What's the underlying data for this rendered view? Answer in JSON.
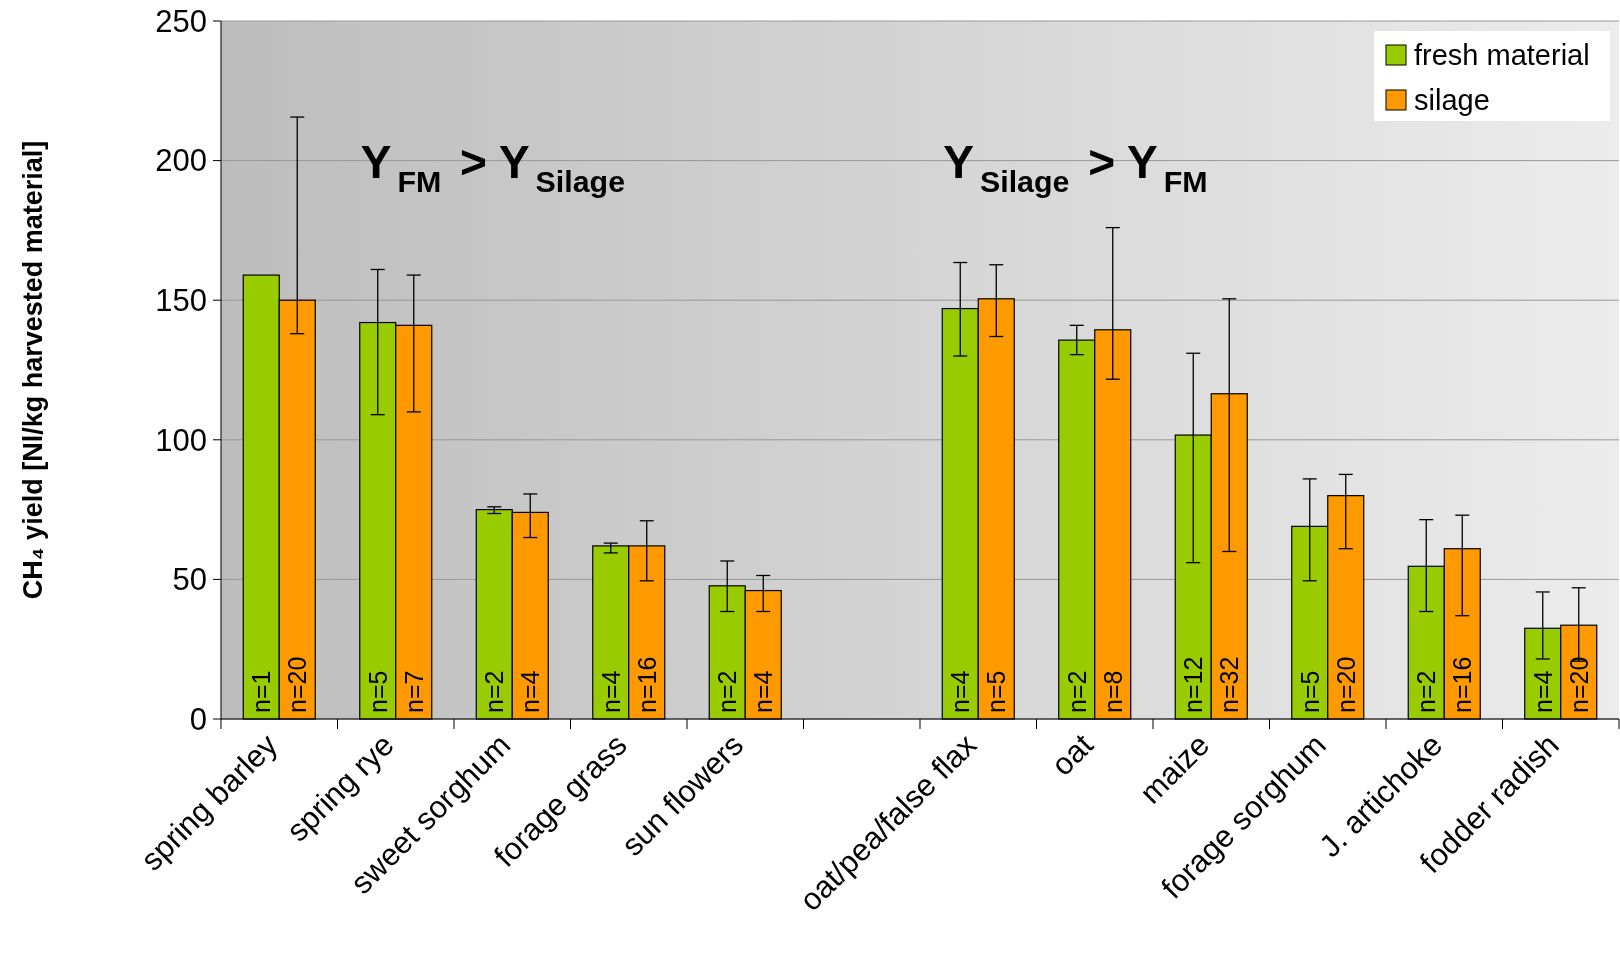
{
  "chart_data": {
    "type": "bar",
    "ylabel": "CH₄ yield [Nl/kg harvested material]",
    "categories": [
      "spring barley",
      "spring rye",
      "sweet sorghum",
      "forage grass",
      "sun flowers",
      null,
      "oat/pea/false flax",
      "oat",
      "maize",
      "forage sorghum",
      "J. artichoke",
      "fodder radish"
    ],
    "series": [
      {
        "name": "fresh material",
        "color": "#99cc00",
        "values": [
          159,
          142,
          75,
          62,
          47.7,
          null,
          147,
          135.7,
          101.7,
          69,
          54.7,
          32.5
        ],
        "errors": [
          null,
          [
            109,
            161
          ],
          [
            73.6,
            76
          ],
          [
            59.5,
            63
          ],
          [
            38.5,
            56.6
          ],
          null,
          [
            130,
            163.5
          ],
          [
            130.5,
            141
          ],
          [
            56,
            131
          ],
          [
            49.5,
            86
          ],
          [
            38.5,
            71.4
          ],
          [
            21.5,
            45.5
          ]
        ]
      },
      {
        "name": "silage",
        "color": "#ff9900",
        "values": [
          150,
          141,
          74,
          62,
          46,
          null,
          150.5,
          139.4,
          116.5,
          80,
          61,
          33.6
        ],
        "errors": [
          [
            138,
            215.6
          ],
          [
            110,
            159
          ],
          [
            65,
            80.6
          ],
          [
            49.5,
            71
          ],
          [
            38.5,
            51.4
          ],
          null,
          [
            137,
            162.7
          ],
          [
            121.7,
            176
          ],
          [
            60,
            150.5
          ],
          [
            61,
            87.6
          ],
          [
            37,
            73
          ],
          [
            20.7,
            47
          ]
        ]
      }
    ],
    "ylim": [
      0,
      250
    ],
    "yticks": [
      0,
      50,
      100,
      150,
      200,
      250
    ],
    "grid": "y",
    "legend": "top right",
    "annotations": [
      "Y$_{FM}$ > Y$_{Silage}$",
      "Y$_{Silage}$ > Y$_{FM}$",
      {
        "text": "n=1",
        "x": "spring barley",
        "y": 0
      },
      {
        "text": "n=20",
        "x": "spring barley",
        "y": 0
      },
      {
        "text": "n=5",
        "x": "spring rye",
        "y": 0
      },
      {
        "text": "n=7",
        "x": "spring rye",
        "y": 0
      },
      {
        "text": "n=2",
        "x": "sweet sorghum",
        "y": 0
      },
      {
        "text": "n=4",
        "x": "sweet sorghum",
        "y": 0
      },
      {
        "text": "n=4",
        "x": "forage grass",
        "y": 0
      },
      {
        "text": "n=16",
        "x": "forage grass",
        "y": 0
      },
      {
        "text": "n=2",
        "x": "sun flowers",
        "y": 0
      },
      {
        "text": "n=4",
        "x": "sun flowers",
        "y": 0
      },
      {
        "text": "n=4",
        "x": "oat/pea/false flax",
        "y": 0
      },
      {
        "text": "n=5",
        "x": "oat/pea/false flax",
        "y": 0
      },
      {
        "text": "n=2",
        "x": "oat",
        "y": 0
      },
      {
        "text": "n=8",
        "x": "oat",
        "y": 0
      },
      {
        "text": "n=12",
        "x": "maize",
        "y": 0
      },
      {
        "text": "n=32",
        "x": "maize",
        "y": 0
      },
      {
        "text": "n=5",
        "x": "forage sorghum",
        "y": 0
      },
      {
        "text": "n=20",
        "x": "forage sorghum",
        "y": 0
      },
      {
        "text": "n=2",
        "x": "J. artichoke",
        "y": 0
      },
      {
        "text": "n=16",
        "x": "J. artichoke",
        "y": 0
      },
      {
        "text": "n=4",
        "x": "fodder radish",
        "y": 0
      },
      {
        "text": "n=20",
        "x": "fodder radish",
        "y": 0
      }
    ]
  }
}
